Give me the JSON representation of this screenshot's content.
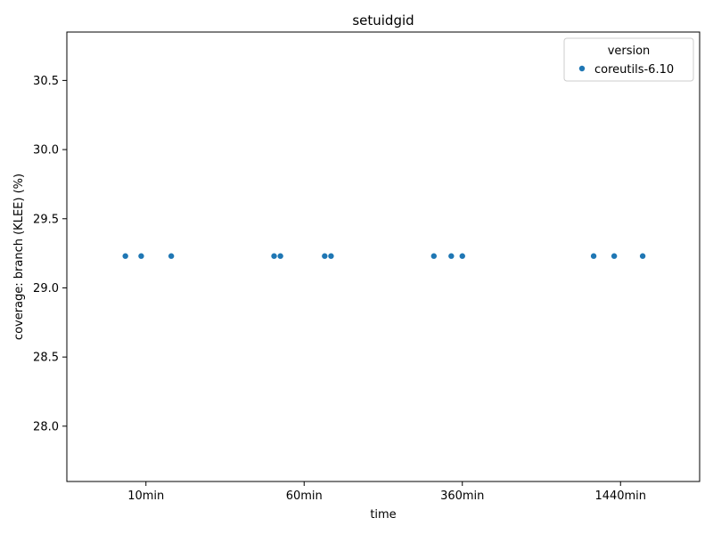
{
  "chart_data": {
    "type": "scatter",
    "title": "setuidgid",
    "xlabel": "time",
    "ylabel": "coverage: branch (KLEE) (%)",
    "categories": [
      "10min",
      "60min",
      "360min",
      "1440min"
    ],
    "ylim": [
      27.6,
      30.85
    ],
    "yticks": [
      28.0,
      28.5,
      29.0,
      29.5,
      30.0,
      30.5
    ],
    "ytick_labels": [
      "28.0",
      "28.5",
      "29.0",
      "29.5",
      "30.0",
      "30.5"
    ],
    "grid": false,
    "legend": {
      "title": "version",
      "placement": "top-right"
    },
    "series": [
      {
        "name": "coreutils-6.10",
        "color": "#1f77b4",
        "points": [
          {
            "category": "10min",
            "jitter": -0.13,
            "y": 29.23
          },
          {
            "category": "10min",
            "jitter": -0.03,
            "y": 29.23
          },
          {
            "category": "10min",
            "jitter": 0.16,
            "y": 29.23
          },
          {
            "category": "60min",
            "jitter": -0.19,
            "y": 29.23
          },
          {
            "category": "60min",
            "jitter": -0.15,
            "y": 29.23
          },
          {
            "category": "60min",
            "jitter": 0.13,
            "y": 29.23
          },
          {
            "category": "60min",
            "jitter": 0.17,
            "y": 29.23
          },
          {
            "category": "360min",
            "jitter": -0.18,
            "y": 29.23
          },
          {
            "category": "360min",
            "jitter": -0.07,
            "y": 29.23
          },
          {
            "category": "360min",
            "jitter": 0.0,
            "y": 29.23
          },
          {
            "category": "1440min",
            "jitter": -0.17,
            "y": 29.23
          },
          {
            "category": "1440min",
            "jitter": -0.04,
            "y": 29.23
          },
          {
            "category": "1440min",
            "jitter": 0.14,
            "y": 29.23
          }
        ]
      }
    ]
  }
}
